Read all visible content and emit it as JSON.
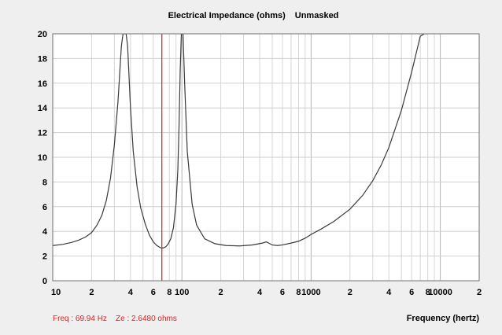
{
  "chart_data": {
    "type": "line",
    "title": "Electrical Impedance (ohms)",
    "subtitle": "Unmasked",
    "xlabel": "Frequency (hertz)",
    "ylabel": "",
    "xscale": "log",
    "xlim": [
      10,
      20000
    ],
    "ylim": [
      0,
      20
    ],
    "grid": true,
    "yticks": [
      0,
      2,
      4,
      6,
      8,
      10,
      12,
      14,
      16,
      18,
      20
    ],
    "xtick_labels": [
      {
        "x": 10,
        "label": "10"
      },
      {
        "x": 20,
        "label": "2"
      },
      {
        "x": 40,
        "label": "4"
      },
      {
        "x": 60,
        "label": "6"
      },
      {
        "x": 80,
        "label": "8"
      },
      {
        "x": 100,
        "label": "100"
      },
      {
        "x": 200,
        "label": "2"
      },
      {
        "x": 400,
        "label": "4"
      },
      {
        "x": 600,
        "label": "6"
      },
      {
        "x": 800,
        "label": "8"
      },
      {
        "x": 1000,
        "label": "1000"
      },
      {
        "x": 2000,
        "label": "2"
      },
      {
        "x": 4000,
        "label": "4"
      },
      {
        "x": 6000,
        "label": "6"
      },
      {
        "x": 8000,
        "label": "8"
      },
      {
        "x": 10000,
        "label": "10000"
      },
      {
        "x": 20000,
        "label": "2"
      }
    ],
    "series": [
      {
        "x": [
          10,
          12,
          14,
          16,
          18,
          20,
          22,
          24,
          26,
          28,
          30,
          32,
          34,
          35,
          36,
          37,
          38,
          40,
          42,
          45,
          48,
          52,
          56,
          60,
          64,
          68,
          70,
          72,
          75,
          78,
          82,
          86,
          90,
          93,
          95,
          97,
          99,
          100,
          102,
          105,
          110,
          120,
          130,
          150,
          180,
          220,
          280,
          350,
          420,
          450,
          470,
          500,
          550,
          600,
          700,
          800,
          900,
          1000,
          1200,
          1500,
          2000,
          2500,
          3000,
          3500,
          4000,
          5000,
          6000,
          7000,
          7500,
          8000
        ],
        "y": [
          2.85,
          2.95,
          3.1,
          3.3,
          3.55,
          3.9,
          4.5,
          5.3,
          6.5,
          8.3,
          11.0,
          14.5,
          19.0,
          20.0,
          20.0,
          20.0,
          19.0,
          14.0,
          10.5,
          7.6,
          5.9,
          4.6,
          3.7,
          3.15,
          2.85,
          2.68,
          2.65,
          2.66,
          2.75,
          2.95,
          3.4,
          4.3,
          6.2,
          9.0,
          12.5,
          17.0,
          20.0,
          20.0,
          20.0,
          16.0,
          10.5,
          6.2,
          4.5,
          3.4,
          3.0,
          2.85,
          2.82,
          2.9,
          3.05,
          3.15,
          3.05,
          2.9,
          2.85,
          2.9,
          3.05,
          3.2,
          3.45,
          3.75,
          4.2,
          4.8,
          5.8,
          6.9,
          8.1,
          9.4,
          10.8,
          13.8,
          16.9,
          19.8,
          20.0,
          20.0
        ]
      }
    ],
    "cursor_x": 69.94,
    "cursor_readout": "Freq : 69.94 Hz    Ze : 2.6480 ohms"
  }
}
